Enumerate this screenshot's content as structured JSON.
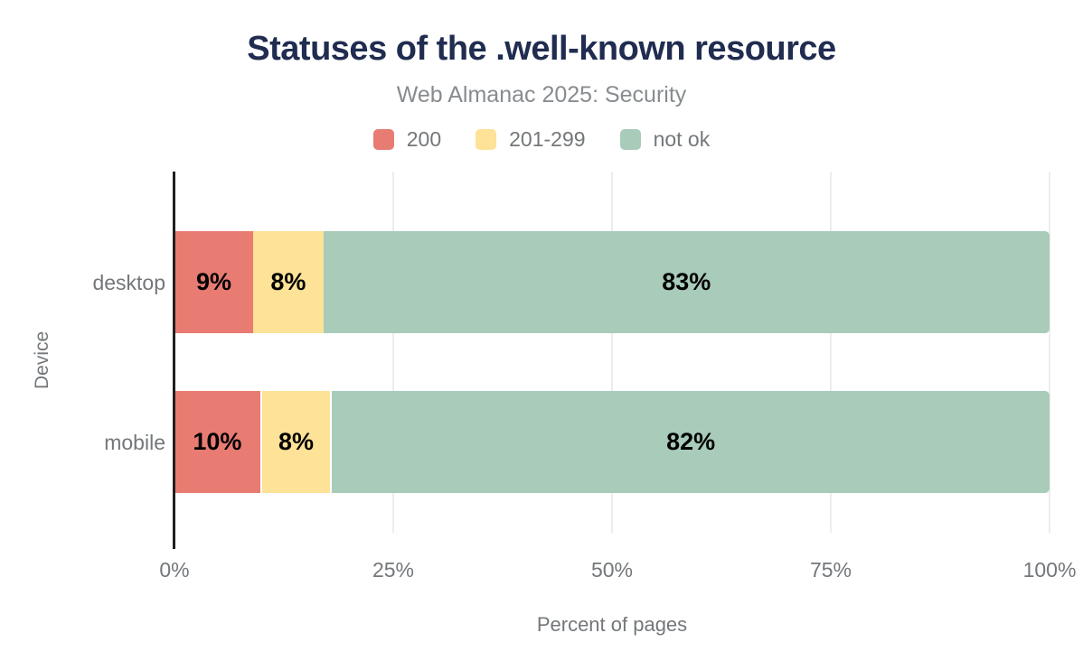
{
  "chart_data": {
    "type": "bar",
    "orientation": "horizontal",
    "stacked": true,
    "title": "Statuses of the .well-known resource",
    "subtitle": "Web Almanac 2025: Security",
    "categories": [
      "desktop",
      "mobile"
    ],
    "series": [
      {
        "name": "200",
        "color": "#e87c72",
        "values": [
          9,
          10
        ],
        "labels": [
          "9%",
          "10%"
        ]
      },
      {
        "name": "201-299",
        "color": "#fde297",
        "values": [
          8,
          8
        ],
        "labels": [
          "8%",
          "8%"
        ]
      },
      {
        "name": "not ok",
        "color": "#a8cbba",
        "values": [
          83,
          82
        ],
        "labels": [
          "83%",
          "82%"
        ]
      }
    ],
    "xlabel": "Percent of pages",
    "ylabel": "Device",
    "xlim": [
      0,
      100
    ],
    "xticks": [
      {
        "value": 0,
        "label": "0%"
      },
      {
        "value": 25,
        "label": "25%"
      },
      {
        "value": 50,
        "label": "50%"
      },
      {
        "value": 75,
        "label": "75%"
      },
      {
        "value": 100,
        "label": "100%"
      }
    ],
    "grid": "vertical",
    "legend_position": "top"
  },
  "colors": {
    "background": "#ffffff",
    "title": "#202c50",
    "subtitle": "#888c8f",
    "axis_text": "#73777a",
    "gridline": "#ededed",
    "axis_line": "#202020",
    "bar_label": "#000000"
  }
}
